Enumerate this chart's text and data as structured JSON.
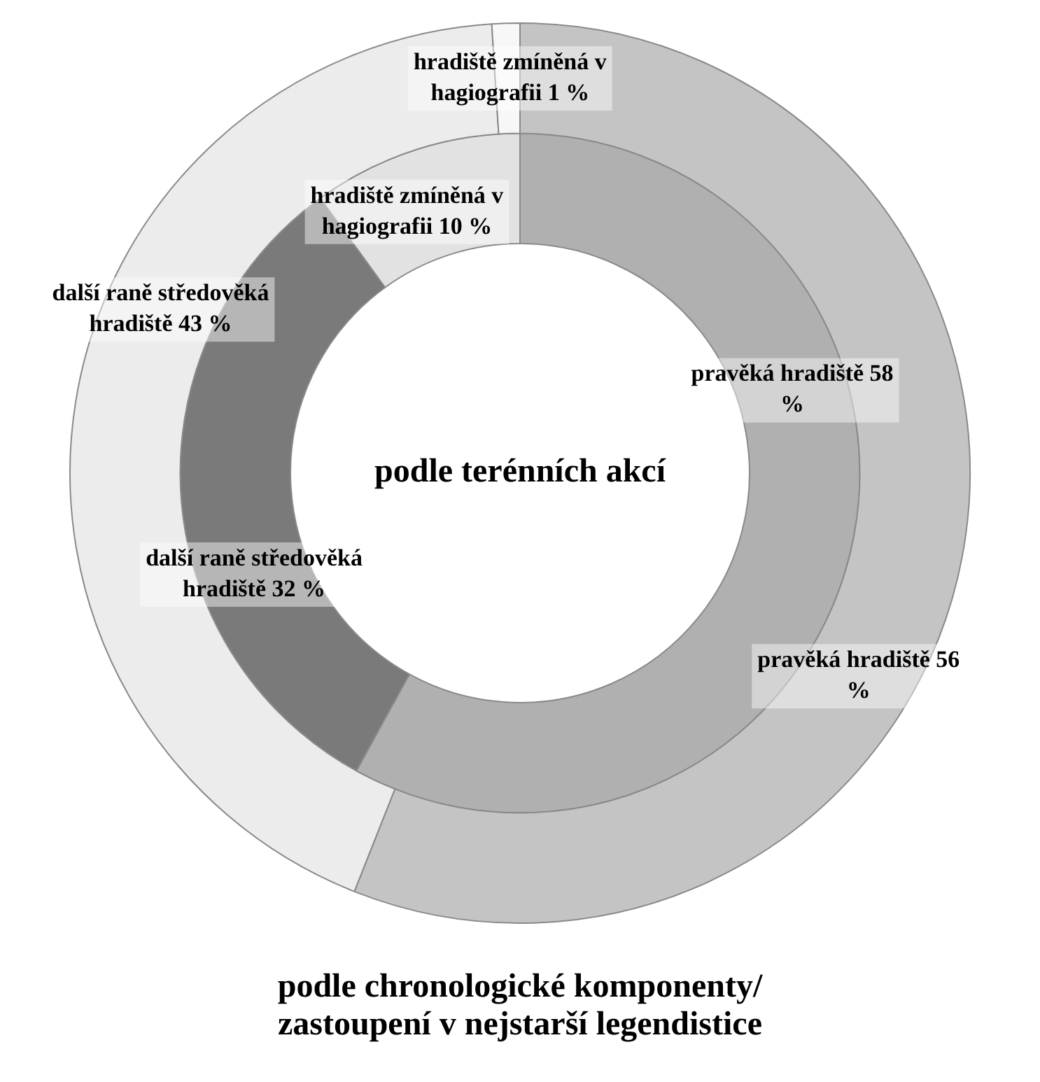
{
  "chart_data": {
    "type": "donut",
    "title": "podle chronologické komponenty/ zastoupení v nejstarší legendistice",
    "annotations": [
      "podle terénních akcí"
    ],
    "categories": [
      "pravěká hradiště",
      "další raně středověká hradiště",
      "hradiště zmíněná v hagiografii"
    ],
    "series": [
      {
        "values": [
          56,
          43,
          1
        ],
        "colors": [
          "#c4c4c4",
          "#ececec",
          "#f7f7f7"
        ],
        "value_labels": [
          "56 %",
          "43 %",
          "1 %"
        ]
      },
      {
        "values": [
          58,
          32,
          10
        ],
        "colors": [
          "#b0b0b0",
          "#7a7a7a",
          "#e2e2e2"
        ],
        "value_labels": [
          "58 %",
          "32 %",
          "10 %"
        ]
      }
    ],
    "legend": false
  }
}
